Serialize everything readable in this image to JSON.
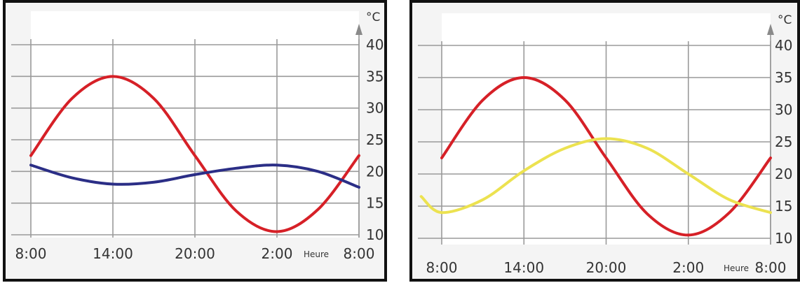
{
  "chart_data": [
    {
      "type": "line",
      "x_ticks": [
        "8:00",
        "14:00",
        "20:00",
        "2:00",
        "8:00"
      ],
      "x_axis_word": "Heure",
      "y_unit": "°C",
      "y_ticks": [
        "40",
        "35",
        "30",
        "25",
        "20",
        "15",
        "10"
      ],
      "ylim": [
        10,
        40
      ],
      "grid": true,
      "series": [
        {
          "color": "#d62027",
          "x": [
            "8:00",
            "11:00",
            "14:00",
            "17:00",
            "20:00",
            "23:00",
            "2:00",
            "5:00",
            "8:00"
          ],
          "values": [
            22.5,
            31.5,
            35,
            31.5,
            22.5,
            13.8,
            10.5,
            14.0,
            22.5
          ]
        },
        {
          "color": "#2b2e86",
          "x": [
            "8:00",
            "11:00",
            "14:00",
            "17:00",
            "20:00",
            "23:00",
            "2:00",
            "5:00",
            "8:00"
          ],
          "values": [
            21,
            19,
            18,
            18.3,
            19.5,
            20.5,
            21,
            20,
            17.5
          ]
        }
      ]
    },
    {
      "type": "line",
      "x_ticks": [
        "8:00",
        "14:00",
        "20:00",
        "2:00",
        "8:00"
      ],
      "x_axis_word": "Heure",
      "y_unit": "°C",
      "y_ticks": [
        "40",
        "35",
        "30",
        "25",
        "20",
        "15",
        "10"
      ],
      "ylim": [
        10,
        40
      ],
      "grid": true,
      "series": [
        {
          "color": "#d62027",
          "x": [
            "8:00",
            "11:00",
            "14:00",
            "17:00",
            "20:00",
            "23:00",
            "2:00",
            "5:00",
            "8:00"
          ],
          "values": [
            22.5,
            31.5,
            35,
            31.5,
            22.5,
            13.8,
            10.5,
            14.0,
            22.5
          ]
        },
        {
          "color": "#ece250",
          "x": [
            "6:30",
            "8:00",
            "11:00",
            "14:00",
            "17:00",
            "20:00",
            "23:00",
            "2:00",
            "5:00",
            "8:00"
          ],
          "values": [
            16.5,
            14,
            16,
            20.5,
            24,
            25.5,
            24,
            20,
            16,
            14
          ]
        }
      ]
    }
  ]
}
